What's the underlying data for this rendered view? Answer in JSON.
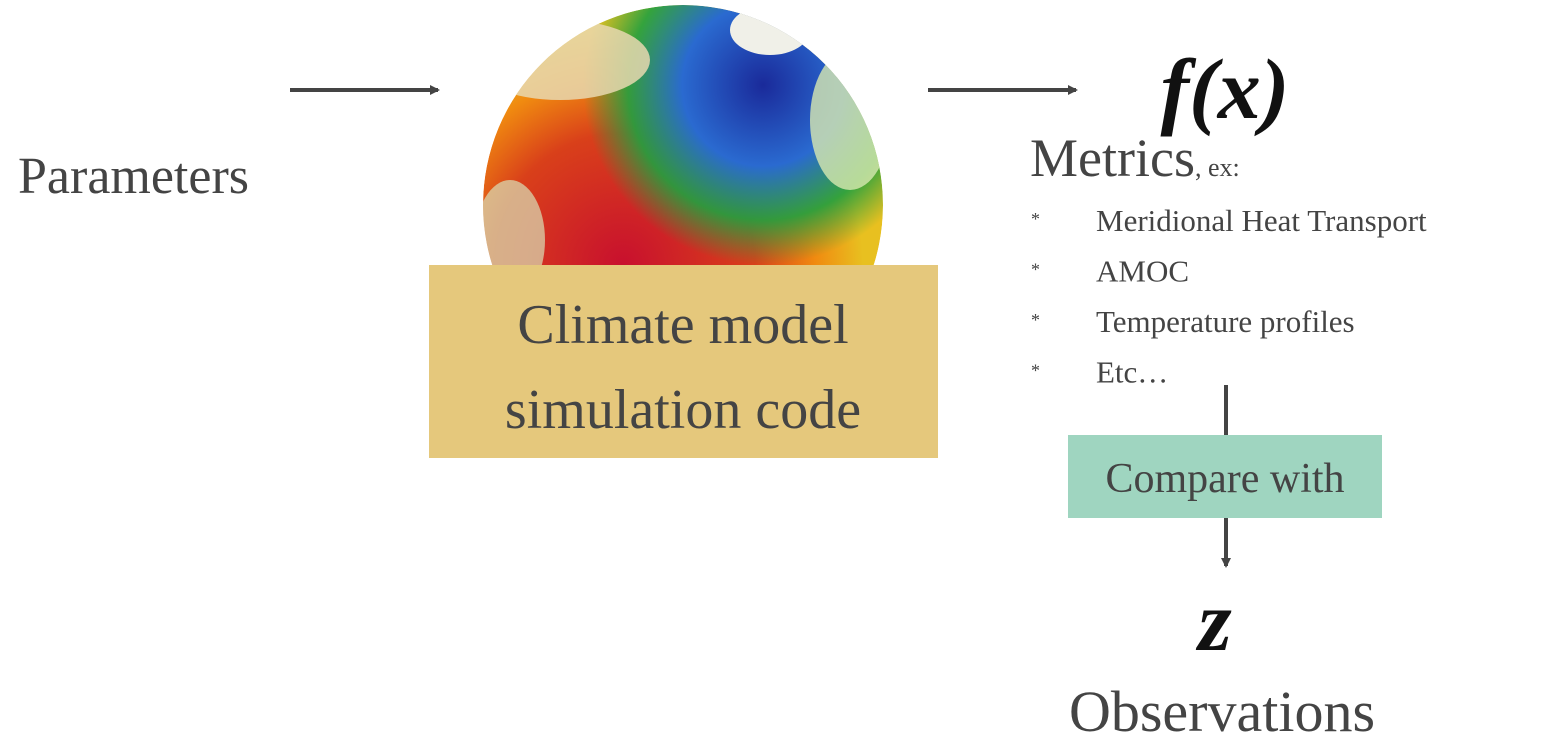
{
  "input": {
    "label": "Parameters"
  },
  "model": {
    "lines": [
      "Climate model",
      "simulation code"
    ]
  },
  "output": {
    "function": "f(x)",
    "title": "Metrics",
    "suffix": ", ex:",
    "items": [
      {
        "bullet": "*",
        "text": "Meridional Heat Transport"
      },
      {
        "bullet": "*",
        "text": "AMOC"
      },
      {
        "bullet": "*",
        "text": "Temperature profiles"
      },
      {
        "bullet": "*",
        "text": "Etc…"
      }
    ]
  },
  "comparison": {
    "label": "Compare with"
  },
  "observations": {
    "symbol": "z",
    "label": "Observations"
  }
}
